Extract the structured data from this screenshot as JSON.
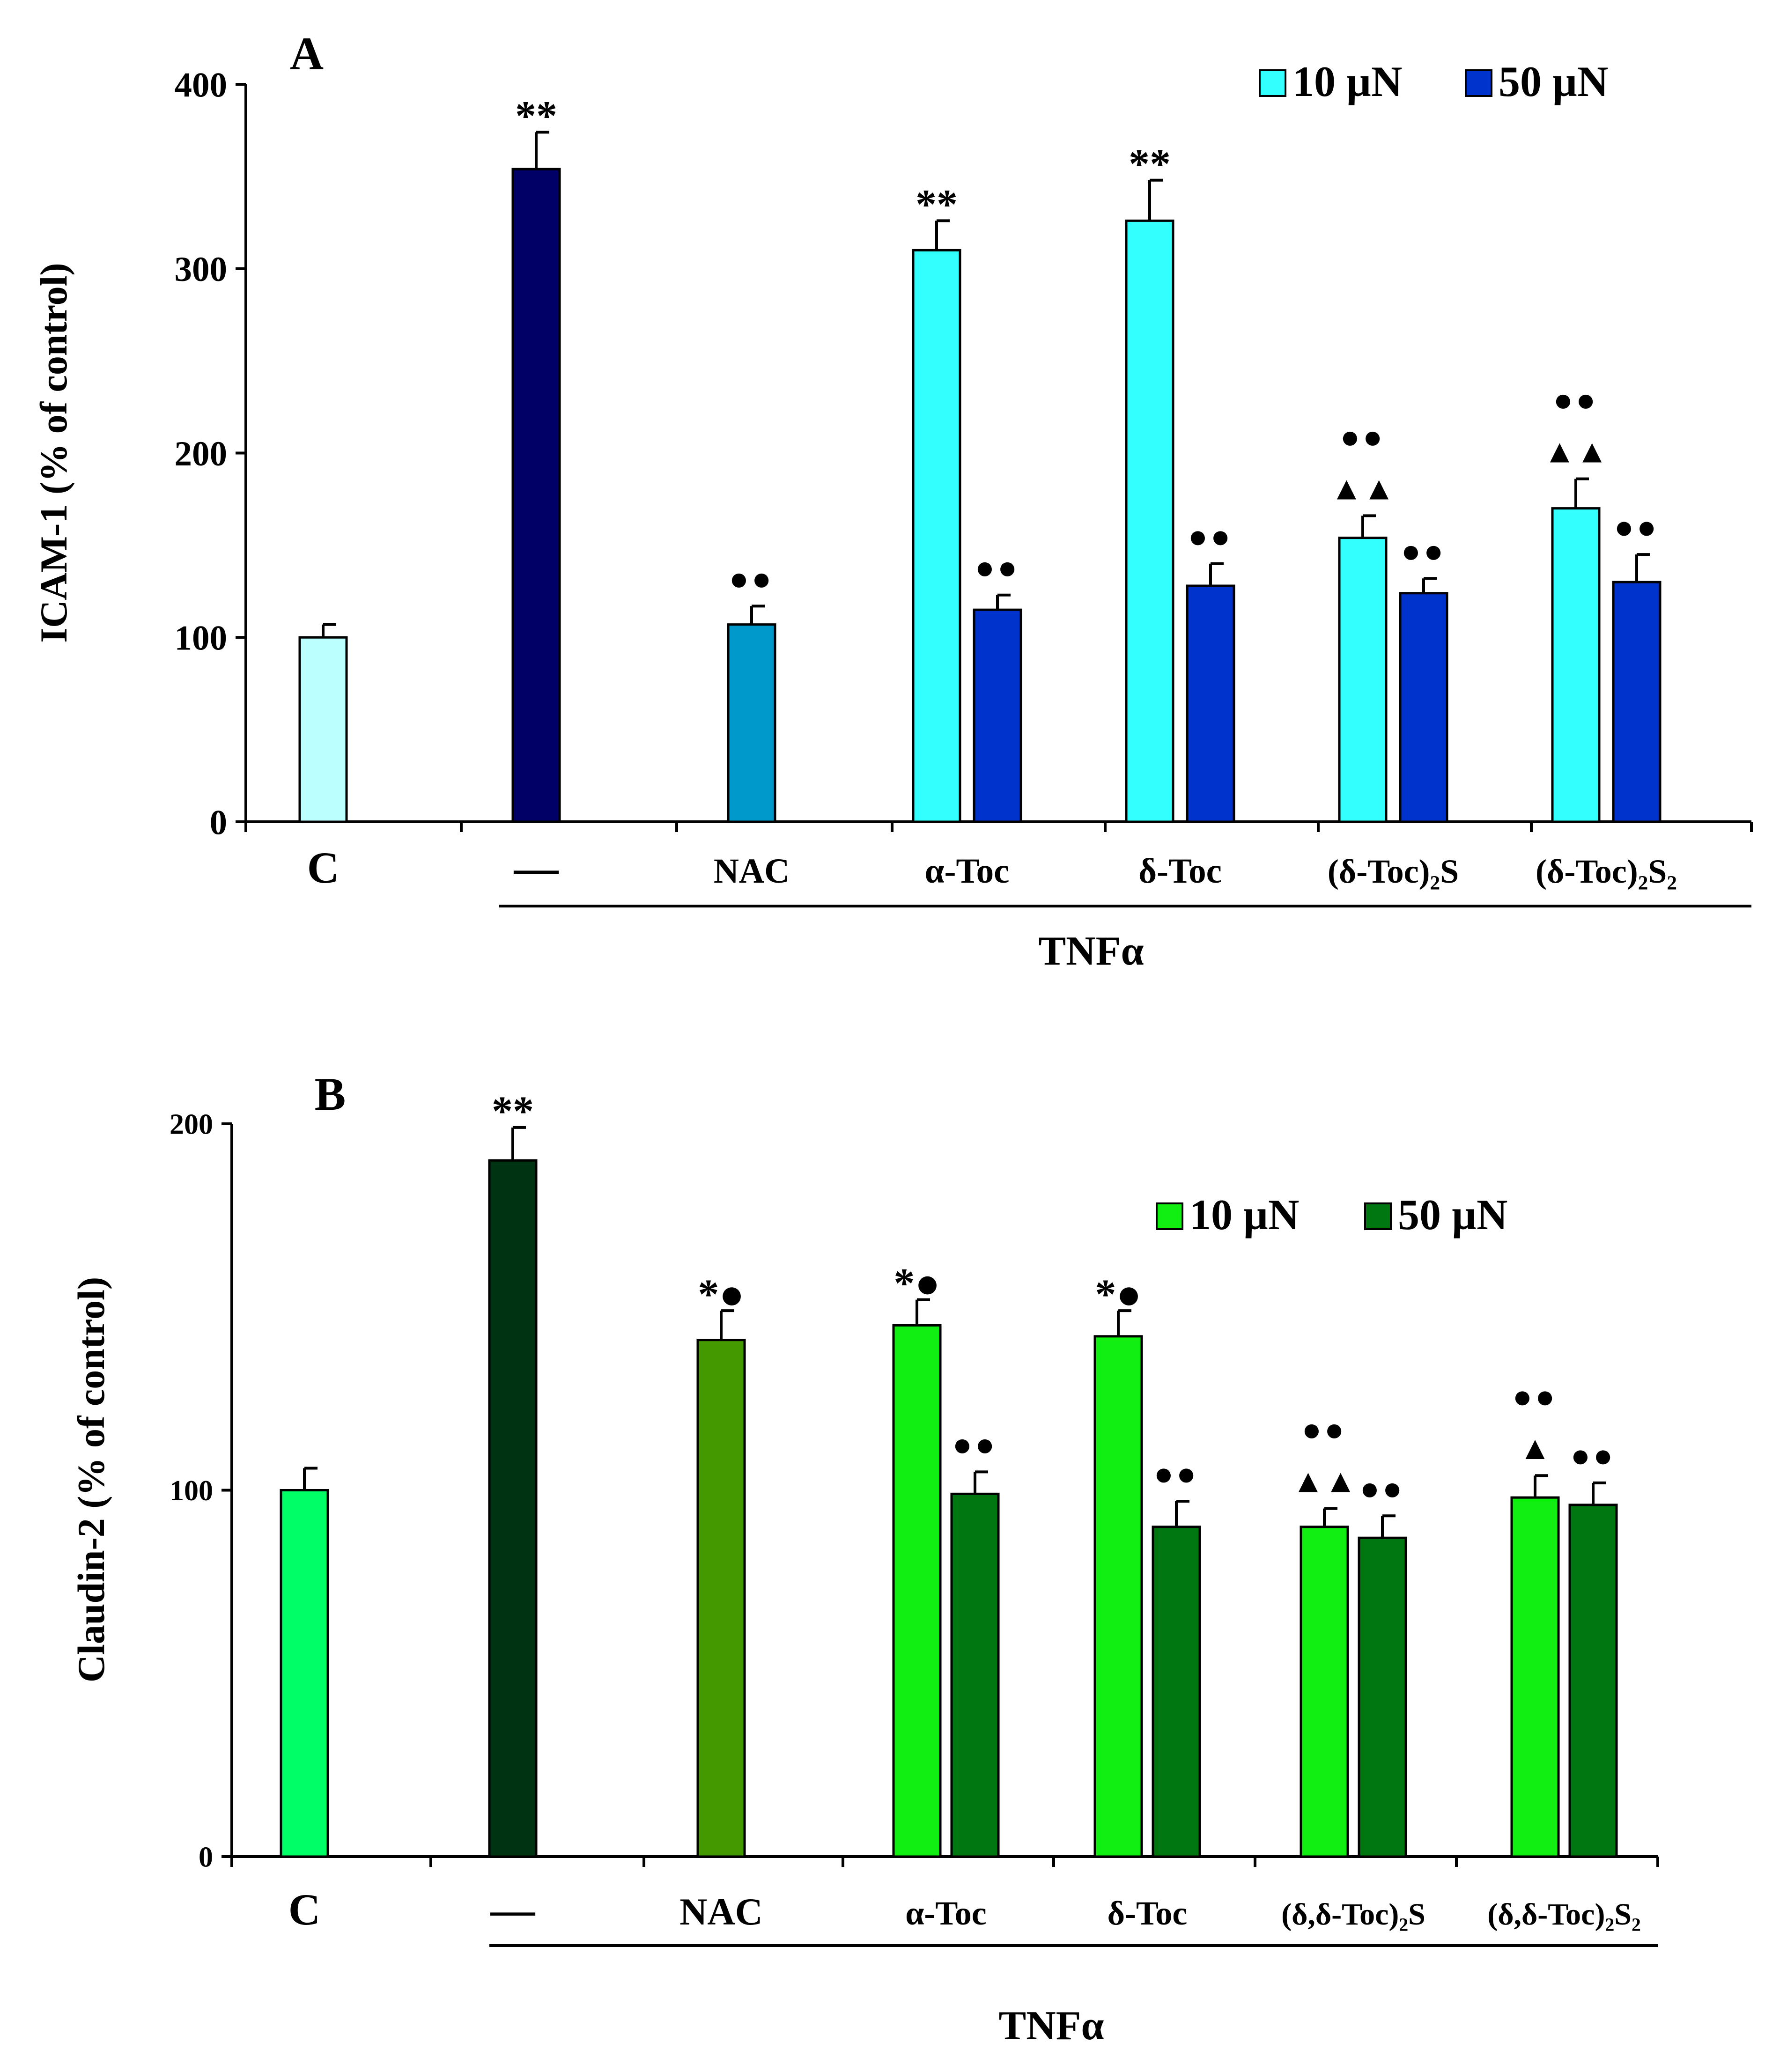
{
  "chart_data": [
    {
      "panel": "A",
      "type": "bar",
      "ylabel": "ICAM-1 (% of control)",
      "ylim": [
        0,
        400
      ],
      "yticks": [
        "0",
        "100",
        "200",
        "300",
        "400"
      ],
      "categories": [
        "C",
        "—",
        "NAC",
        "α-Toc",
        "δ-Toc",
        "(δ-Toc)₂S",
        "(δ-Toc)₂S₂"
      ],
      "group_label": "TNFα",
      "legend": [
        {
          "label": "10 µN",
          "color": "#33ffff"
        },
        {
          "label": "50 µN",
          "color": "#0033cc"
        }
      ],
      "bars": [
        {
          "cat": 0,
          "slot": "single",
          "value": 100,
          "error": 7,
          "color": "#bbffff",
          "ann": []
        },
        {
          "cat": 1,
          "slot": "single",
          "value": 354,
          "error": 20,
          "color": "#000066",
          "ann": [
            "**"
          ]
        },
        {
          "cat": 2,
          "slot": "single",
          "value": 107,
          "error": 10,
          "color": "#0099cc",
          "ann": [
            "●●"
          ]
        },
        {
          "cat": 3,
          "slot": "left",
          "value": 310,
          "error": 16,
          "color": "#33ffff",
          "ann": [
            "**"
          ]
        },
        {
          "cat": 3,
          "slot": "right",
          "value": 115,
          "error": 8,
          "color": "#0033cc",
          "ann": [
            "●●"
          ]
        },
        {
          "cat": 4,
          "slot": "left",
          "value": 326,
          "error": 22,
          "color": "#33ffff",
          "ann": [
            "**"
          ]
        },
        {
          "cat": 4,
          "slot": "right",
          "value": 128,
          "error": 12,
          "color": "#0033cc",
          "ann": [
            "●●"
          ]
        },
        {
          "cat": 5,
          "slot": "left",
          "value": 154,
          "error": 12,
          "color": "#33ffff",
          "ann": [
            "▲▲",
            "●●"
          ]
        },
        {
          "cat": 5,
          "slot": "right",
          "value": 124,
          "error": 8,
          "color": "#0033cc",
          "ann": [
            "●●"
          ]
        },
        {
          "cat": 6,
          "slot": "left",
          "value": 170,
          "error": 16,
          "color": "#33ffff",
          "ann": [
            "▲▲",
            "●●"
          ]
        },
        {
          "cat": 6,
          "slot": "right",
          "value": 130,
          "error": 15,
          "color": "#0033cc",
          "ann": [
            "●●"
          ]
        }
      ]
    },
    {
      "panel": "B",
      "type": "bar",
      "ylabel": "Claudin-2 (% of control)",
      "ylim": [
        0,
        200
      ],
      "yticks": [
        "0",
        "100",
        "200"
      ],
      "categories": [
        "C",
        "—",
        "NAC",
        "α-Toc",
        "δ-Toc",
        "(δ,δ-Toc)₂S",
        "(δ,δ-Toc)₂S₂"
      ],
      "group_label": "TNFα",
      "legend": [
        {
          "label": "10 µN",
          "color": "#11ee11"
        },
        {
          "label": "50 µN",
          "color": "#007711"
        }
      ],
      "bars": [
        {
          "cat": 0,
          "slot": "single",
          "value": 100,
          "error": 6,
          "color": "#00ff66",
          "ann": []
        },
        {
          "cat": 1,
          "slot": "single",
          "value": 190,
          "error": 9,
          "color": "#003311",
          "ann": [
            "**"
          ]
        },
        {
          "cat": 2,
          "slot": "single",
          "value": 141,
          "error": 8,
          "color": "#449900",
          "ann": [
            "*●"
          ]
        },
        {
          "cat": 3,
          "slot": "left",
          "value": 145,
          "error": 7,
          "color": "#11ee11",
          "ann": [
            "*●"
          ]
        },
        {
          "cat": 3,
          "slot": "right",
          "value": 99,
          "error": 6,
          "color": "#007711",
          "ann": [
            "●●"
          ]
        },
        {
          "cat": 4,
          "slot": "left",
          "value": 142,
          "error": 7,
          "color": "#11ee11",
          "ann": [
            "*●"
          ]
        },
        {
          "cat": 4,
          "slot": "right",
          "value": 90,
          "error": 7,
          "color": "#007711",
          "ann": [
            "●●"
          ]
        },
        {
          "cat": 5,
          "slot": "left",
          "value": 90,
          "error": 5,
          "color": "#11ee11",
          "ann": [
            "▲▲",
            "●●"
          ]
        },
        {
          "cat": 5,
          "slot": "right",
          "value": 87,
          "error": 6,
          "color": "#007711",
          "ann": [
            "●●"
          ]
        },
        {
          "cat": 6,
          "slot": "left",
          "value": 98,
          "error": 6,
          "color": "#11ee11",
          "ann": [
            "▲",
            "●●"
          ]
        },
        {
          "cat": 6,
          "slot": "right",
          "value": 96,
          "error": 6,
          "color": "#007711",
          "ann": [
            "●●"
          ]
        }
      ]
    }
  ]
}
